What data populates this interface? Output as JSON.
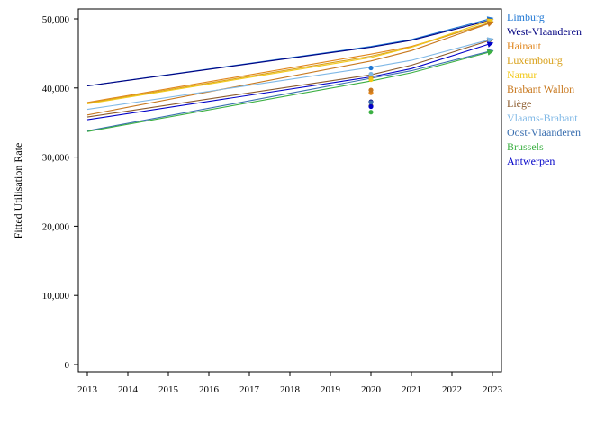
{
  "chart_data": {
    "type": "line",
    "title": "",
    "xlabel": "",
    "ylabel": "Fitted Utilisation Rate",
    "xlim": [
      2013,
      2023
    ],
    "ylim": [
      0,
      50000
    ],
    "x_ticks": [
      "2013",
      "2014",
      "2015",
      "2016",
      "2017",
      "2018",
      "2019",
      "2020",
      "2021",
      "2022",
      "2023"
    ],
    "y_ticks": [
      {
        "value": 0,
        "label": "0"
      },
      {
        "value": 10000,
        "label": "10,000"
      },
      {
        "value": 20000,
        "label": "20,000"
      },
      {
        "value": 30000,
        "label": "30,000"
      },
      {
        "value": 40000,
        "label": "40,000"
      },
      {
        "value": 50000,
        "label": "50,000"
      }
    ],
    "grid": false,
    "legend_position": "right",
    "series": [
      {
        "name": "Limburg",
        "color": "#1f77d4",
        "x": [
          2013,
          2020,
          2021,
          2023
        ],
        "values": [
          40300,
          46000,
          47000,
          50100
        ],
        "point": {
          "x": 2020,
          "y": 42900
        }
      },
      {
        "name": "West-Vlaanderen",
        "color": "#000080",
        "x": [
          2013,
          2020,
          2021,
          2023
        ],
        "values": [
          40300,
          45900,
          46900,
          49900
        ],
        "point": {
          "x": 2020,
          "y": 38000
        }
      },
      {
        "name": "Hainaut",
        "color": "#e0851c",
        "x": [
          2013,
          2020,
          2021,
          2023
        ],
        "values": [
          37900,
          44900,
          46000,
          49500
        ],
        "point": {
          "x": 2020,
          "y": 39300
        }
      },
      {
        "name": "Luxembourg",
        "color": "#d9a11a",
        "x": [
          2013,
          2020,
          2021,
          2023
        ],
        "values": [
          37800,
          44600,
          45900,
          49600
        ],
        "point": {
          "x": 2020,
          "y": 41500
        }
      },
      {
        "name": "Namur",
        "color": "#f2c91a",
        "x": [
          2013,
          2020,
          2021,
          2023
        ],
        "values": [
          37700,
          44400,
          45900,
          49900
        ],
        "point": {
          "x": 2020,
          "y": 41200
        }
      },
      {
        "name": "Brabant Wallon",
        "color": "#c8781e",
        "x": [
          2013,
          2020,
          2021,
          2023
        ],
        "values": [
          36100,
          43900,
          45400,
          49500
        ],
        "point": {
          "x": 2020,
          "y": 39700
        }
      },
      {
        "name": "Liège",
        "color": "#8b5a2b",
        "x": [
          2013,
          2020,
          2021,
          2023
        ],
        "values": [
          35800,
          41900,
          43300,
          47000
        ],
        "point": {
          "x": 2020,
          "y": 37400
        }
      },
      {
        "name": "Vlaams-Brabant",
        "color": "#7fb8e6",
        "x": [
          2013,
          2020,
          2021,
          2023
        ],
        "values": [
          36900,
          43000,
          44000,
          47100
        ],
        "point": {
          "x": 2020,
          "y": 42000
        }
      },
      {
        "name": "Oost-Vlaanderen",
        "color": "#3a6fb0",
        "x": [
          2013,
          2020,
          2021,
          2023
        ],
        "values": [
          33800,
          41400,
          42500,
          45400
        ],
        "point": {
          "x": 2020,
          "y": 37900
        }
      },
      {
        "name": "Brussels",
        "color": "#3cb043",
        "x": [
          2013,
          2020,
          2021,
          2023
        ],
        "values": [
          33700,
          41000,
          42200,
          45300
        ],
        "point": {
          "x": 2020,
          "y": 36500
        }
      },
      {
        "name": "Antwerpen",
        "color": "#0000c8",
        "x": [
          2013,
          2020,
          2021,
          2023
        ],
        "values": [
          35400,
          41600,
          42800,
          46500
        ],
        "point": {
          "x": 2020,
          "y": 37300
        }
      }
    ]
  }
}
